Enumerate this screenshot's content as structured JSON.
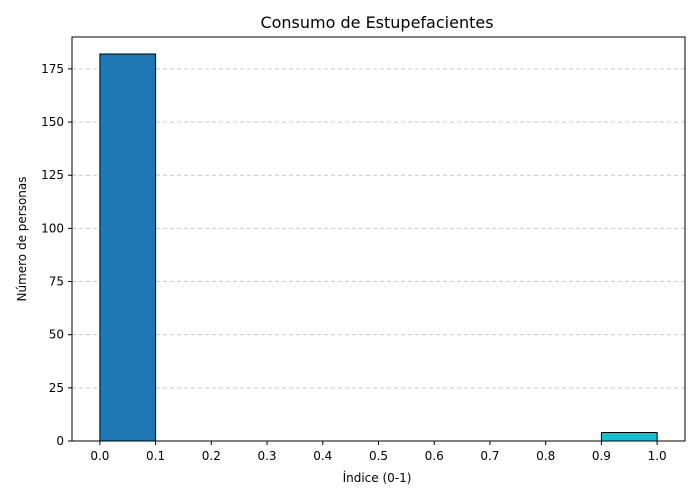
{
  "chart_data": {
    "type": "bar",
    "title": "Consumo de Estupefacientes",
    "xlabel": "Índice (0-1)",
    "ylabel": "Número de personas",
    "xlim": [
      -0.05,
      1.05
    ],
    "ylim": [
      0,
      190
    ],
    "x_ticks": [
      0.0,
      0.1,
      0.2,
      0.3,
      0.4,
      0.5,
      0.6,
      0.7,
      0.8,
      0.9,
      1.0
    ],
    "x_tick_labels": [
      "0.0",
      "0.1",
      "0.2",
      "0.3",
      "0.4",
      "0.5",
      "0.6",
      "0.7",
      "0.8",
      "0.9",
      "1.0"
    ],
    "y_ticks": [
      0,
      25,
      50,
      75,
      100,
      125,
      150,
      175
    ],
    "y_tick_labels": [
      "0",
      "25",
      "50",
      "75",
      "100",
      "125",
      "150",
      "175"
    ],
    "grid": "y-dashed",
    "bins": [
      {
        "x0": 0.0,
        "x1": 0.1,
        "value": 182,
        "color": "#1f77b4"
      },
      {
        "x0": 0.1,
        "x1": 0.2,
        "value": 0,
        "color": "#1f77b4"
      },
      {
        "x0": 0.2,
        "x1": 0.3,
        "value": 0,
        "color": "#1f77b4"
      },
      {
        "x0": 0.3,
        "x1": 0.4,
        "value": 0,
        "color": "#1f77b4"
      },
      {
        "x0": 0.4,
        "x1": 0.5,
        "value": 0,
        "color": "#1f77b4"
      },
      {
        "x0": 0.5,
        "x1": 0.6,
        "value": 0,
        "color": "#1f77b4"
      },
      {
        "x0": 0.6,
        "x1": 0.7,
        "value": 0,
        "color": "#1f77b4"
      },
      {
        "x0": 0.7,
        "x1": 0.8,
        "value": 0,
        "color": "#1f77b4"
      },
      {
        "x0": 0.8,
        "x1": 0.9,
        "value": 0,
        "color": "#1f77b4"
      },
      {
        "x0": 0.9,
        "x1": 1.0,
        "value": 4,
        "color": "#17becf"
      }
    ]
  }
}
